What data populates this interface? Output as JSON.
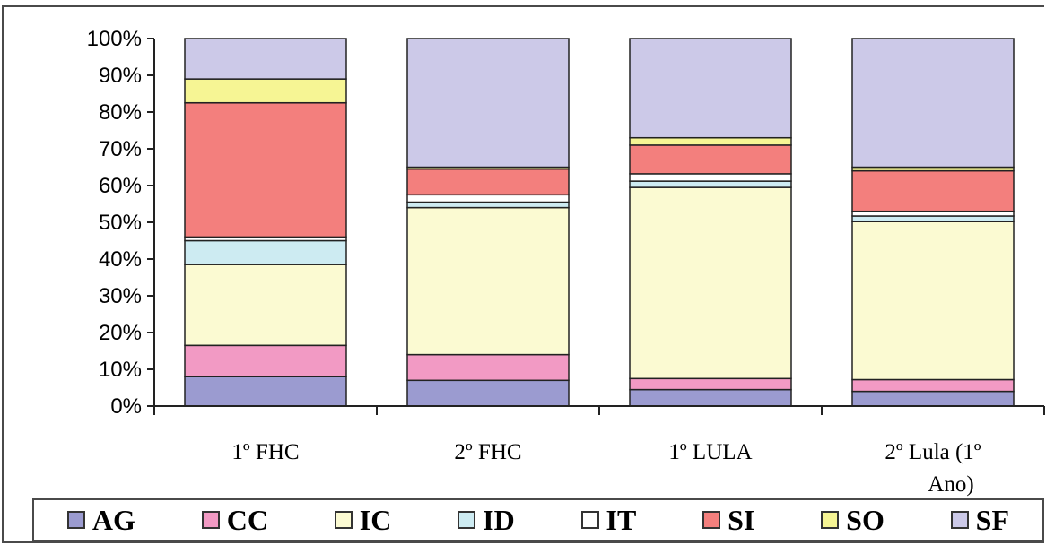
{
  "chart_data": {
    "type": "stacked-bar-100",
    "categories": [
      "1º FHC",
      "2º FHC",
      "1º LULA",
      "2º Lula (1º Ano)"
    ],
    "category_label_lines": [
      [
        "1º FHC"
      ],
      [
        "2º FHC"
      ],
      [
        "1º LULA"
      ],
      [
        "2º Lula    (1º",
        "Ano)"
      ]
    ],
    "ylim": [
      0,
      100
    ],
    "y_ticks": [
      0,
      10,
      20,
      30,
      40,
      50,
      60,
      70,
      80,
      90,
      100
    ],
    "y_tick_labels": [
      "0%",
      "10%",
      "20%",
      "30%",
      "40%",
      "50%",
      "60%",
      "70%",
      "80%",
      "90%",
      "100%"
    ],
    "series": [
      {
        "name": "AG",
        "color": "#9b9bd0",
        "values": [
          8,
          7,
          4.5,
          4
        ]
      },
      {
        "name": "CC",
        "color": "#f29ac4",
        "values": [
          8.5,
          7,
          3,
          3.2
        ]
      },
      {
        "name": "IC",
        "color": "#fbfad2",
        "values": [
          22,
          40,
          52,
          43
        ]
      },
      {
        "name": "ID",
        "color": "#cdebf2",
        "values": [
          6.5,
          1.5,
          1.7,
          1.5
        ]
      },
      {
        "name": "IT",
        "color": "#ffffff",
        "values": [
          1,
          2,
          2,
          1.3
        ]
      },
      {
        "name": "SI",
        "color": "#f37f7d",
        "values": [
          36.5,
          7,
          7.8,
          11
        ]
      },
      {
        "name": "SO",
        "color": "#f6f594",
        "values": [
          6.5,
          0.5,
          2,
          1
        ]
      },
      {
        "name": "SF",
        "color": "#ccc9e8",
        "values": [
          11,
          35,
          27,
          35
        ]
      }
    ],
    "legend_position": "bottom",
    "grid": false
  }
}
